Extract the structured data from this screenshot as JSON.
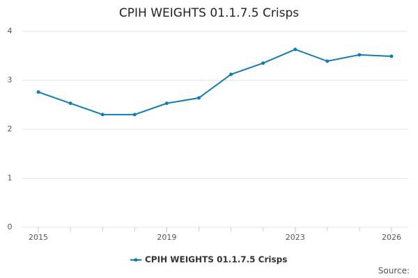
{
  "chart_data": {
    "type": "line",
    "title": "CPIH WEIGHTS 01.1.7.5 Crisps",
    "x": [
      2015,
      2016,
      2017,
      2018,
      2019,
      2020,
      2021,
      2022,
      2023,
      2024,
      2025,
      2026
    ],
    "series": [
      {
        "name": "CPIH WEIGHTS 01.1.7.5 Crisps",
        "color": "#0f7cb6",
        "values": [
          2.76,
          2.53,
          2.3,
          2.3,
          2.53,
          2.64,
          3.12,
          3.35,
          3.63,
          3.39,
          3.52,
          3.49
        ]
      }
    ],
    "xlim": [
      2014.5,
      2026.5
    ],
    "xticks": [
      2015,
      2019,
      2023,
      2026
    ],
    "ylim": [
      0,
      4
    ],
    "yticks": [
      0,
      1,
      2,
      3,
      4
    ],
    "grid": true,
    "legend": "bottom",
    "source": "Source:"
  }
}
